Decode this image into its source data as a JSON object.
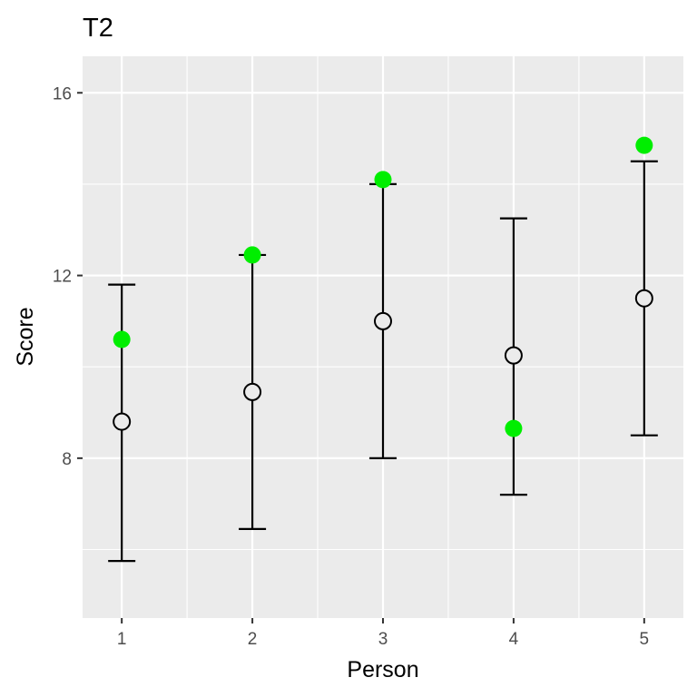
{
  "chart_data": {
    "type": "scatter",
    "title": "T2",
    "xlabel": "Person",
    "ylabel": "Score",
    "x": [
      1,
      2,
      3,
      4,
      5
    ],
    "xlim": [
      0.7,
      5.3
    ],
    "ylim": [
      4.5,
      16.8
    ],
    "x_ticks": [
      "1",
      "2",
      "3",
      "4",
      "5"
    ],
    "y_ticks": [
      8,
      12,
      16
    ],
    "grid": true,
    "series": [
      {
        "kind": "mean-with-interval",
        "marker": "open-circle",
        "color": "#000000",
        "values": [
          8.8,
          9.45,
          11.0,
          10.25,
          11.5
        ],
        "lower": [
          5.75,
          6.45,
          8.0,
          7.2,
          8.5
        ],
        "upper": [
          11.8,
          12.45,
          14.0,
          13.25,
          14.5
        ]
      },
      {
        "kind": "points",
        "marker": "filled-circle",
        "color": "#00ee00",
        "values": [
          10.6,
          12.45,
          14.1,
          8.65,
          14.85
        ]
      }
    ]
  }
}
